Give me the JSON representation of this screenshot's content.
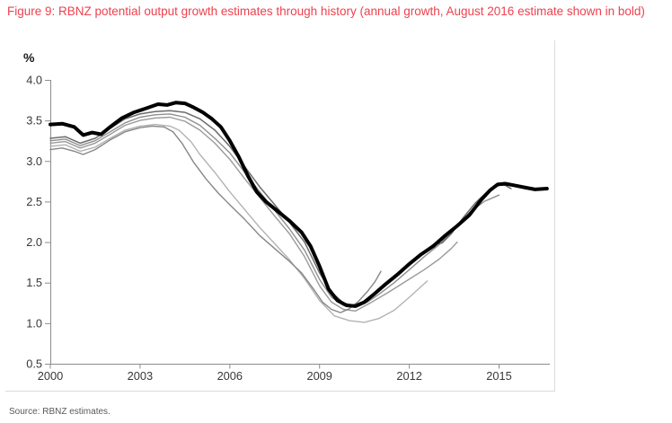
{
  "figure": {
    "title": "Figure 9: RBNZ potential output growth estimates through history (annual growth, August 2016 estimate shown in bold)",
    "source": "Source: RBNZ estimates.",
    "title_color": "#ee414d"
  },
  "chart_data": {
    "type": "line",
    "title": "RBNZ potential output growth estimates through history (annual growth)",
    "unit_label": "%",
    "xlabel": "",
    "ylabel": "%",
    "x_range": [
      2000,
      2016.7
    ],
    "y_range": [
      0.5,
      4.0
    ],
    "grid": false,
    "legend": "none",
    "x_ticks": [
      2000,
      2003,
      2006,
      2009,
      2012,
      2015
    ],
    "y_tick_labels": [
      "4.0",
      "3.5",
      "3.0",
      "2.5",
      "2.0",
      "1.5",
      "1.0",
      "0.5"
    ],
    "axis_color": "#8c8c8c",
    "tick_label_color": "#383838",
    "series": [
      {
        "name": "vintage-estimate-ending-2012",
        "color": "#b3b3b3",
        "width": 1.4,
        "points": [
          [
            2000,
            3.18
          ],
          [
            2000.5,
            3.2
          ],
          [
            2001,
            3.12
          ],
          [
            2001.5,
            3.17
          ],
          [
            2002,
            3.28
          ],
          [
            2002.5,
            3.38
          ],
          [
            2003,
            3.43
          ],
          [
            2003.5,
            3.45
          ],
          [
            2004,
            3.43
          ],
          [
            2004.3,
            3.38
          ],
          [
            2004.7,
            3.24
          ],
          [
            2005,
            3.08
          ],
          [
            2005.5,
            2.86
          ],
          [
            2006,
            2.62
          ],
          [
            2006.5,
            2.4
          ],
          [
            2007,
            2.18
          ],
          [
            2007.5,
            1.98
          ],
          [
            2008,
            1.78
          ],
          [
            2008.5,
            1.55
          ],
          [
            2009,
            1.28
          ],
          [
            2009.5,
            1.09
          ],
          [
            2010,
            1.03
          ],
          [
            2010.5,
            1.01
          ],
          [
            2011,
            1.06
          ],
          [
            2011.5,
            1.16
          ],
          [
            2012,
            1.32
          ],
          [
            2012.3,
            1.42
          ],
          [
            2012.6,
            1.52
          ]
        ]
      },
      {
        "name": "vintage-estimate-ending-2013",
        "color": "#9a9a9a",
        "width": 1.4,
        "points": [
          [
            2000,
            3.22
          ],
          [
            2000.5,
            3.24
          ],
          [
            2001,
            3.16
          ],
          [
            2001.5,
            3.22
          ],
          [
            2002,
            3.33
          ],
          [
            2002.5,
            3.44
          ],
          [
            2003,
            3.5
          ],
          [
            2003.5,
            3.53
          ],
          [
            2004,
            3.54
          ],
          [
            2004.5,
            3.49
          ],
          [
            2005,
            3.38
          ],
          [
            2005.5,
            3.22
          ],
          [
            2006,
            3.02
          ],
          [
            2006.5,
            2.78
          ],
          [
            2007,
            2.55
          ],
          [
            2007.5,
            2.32
          ],
          [
            2008,
            2.1
          ],
          [
            2008.5,
            1.82
          ],
          [
            2009,
            1.46
          ],
          [
            2009.4,
            1.26
          ],
          [
            2009.8,
            1.17
          ],
          [
            2010.2,
            1.15
          ],
          [
            2010.7,
            1.25
          ],
          [
            2011.3,
            1.38
          ],
          [
            2011.9,
            1.52
          ],
          [
            2012.5,
            1.66
          ],
          [
            2013,
            1.79
          ],
          [
            2013.4,
            1.92
          ],
          [
            2013.6,
            2.0
          ]
        ]
      },
      {
        "name": "vintage-estimate-ending-2015",
        "color": "#8f8f8f",
        "width": 1.4,
        "points": [
          [
            2000,
            3.25
          ],
          [
            2000.5,
            3.27
          ],
          [
            2001,
            3.19
          ],
          [
            2001.5,
            3.25
          ],
          [
            2002,
            3.36
          ],
          [
            2002.5,
            3.47
          ],
          [
            2003,
            3.54
          ],
          [
            2003.5,
            3.57
          ],
          [
            2004,
            3.58
          ],
          [
            2004.5,
            3.54
          ],
          [
            2005,
            3.44
          ],
          [
            2005.5,
            3.28
          ],
          [
            2006,
            3.1
          ],
          [
            2006.5,
            2.86
          ],
          [
            2007,
            2.62
          ],
          [
            2007.5,
            2.39
          ],
          [
            2008,
            2.16
          ],
          [
            2008.5,
            1.9
          ],
          [
            2009,
            1.54
          ],
          [
            2009.4,
            1.32
          ],
          [
            2009.8,
            1.22
          ],
          [
            2010.2,
            1.2
          ],
          [
            2010.6,
            1.26
          ],
          [
            2011,
            1.36
          ],
          [
            2011.5,
            1.5
          ],
          [
            2012,
            1.66
          ],
          [
            2012.5,
            1.82
          ],
          [
            2013,
            1.97
          ],
          [
            2013.5,
            2.16
          ],
          [
            2014,
            2.36
          ],
          [
            2014.5,
            2.5
          ],
          [
            2015,
            2.58
          ]
        ]
      },
      {
        "name": "vintage-estimate-ending-2011",
        "color": "#878787",
        "width": 1.4,
        "points": [
          [
            2000,
            3.14
          ],
          [
            2000.4,
            3.16
          ],
          [
            2000.8,
            3.12
          ],
          [
            2001.1,
            3.08
          ],
          [
            2001.5,
            3.14
          ],
          [
            2002,
            3.26
          ],
          [
            2002.5,
            3.36
          ],
          [
            2003,
            3.41
          ],
          [
            2003.4,
            3.43
          ],
          [
            2003.8,
            3.42
          ],
          [
            2004.1,
            3.36
          ],
          [
            2004.4,
            3.22
          ],
          [
            2004.8,
            2.98
          ],
          [
            2005.2,
            2.78
          ],
          [
            2005.6,
            2.61
          ],
          [
            2006,
            2.46
          ],
          [
            2006.5,
            2.28
          ],
          [
            2007,
            2.08
          ],
          [
            2007.5,
            1.92
          ],
          [
            2008,
            1.76
          ],
          [
            2008.4,
            1.62
          ],
          [
            2008.8,
            1.42
          ],
          [
            2009.1,
            1.26
          ],
          [
            2009.4,
            1.17
          ],
          [
            2009.7,
            1.13
          ],
          [
            2010,
            1.18
          ],
          [
            2010.3,
            1.27
          ],
          [
            2010.6,
            1.39
          ],
          [
            2010.85,
            1.51
          ],
          [
            2011.05,
            1.64
          ]
        ]
      },
      {
        "name": "vintage-estimate-ending-2016",
        "color": "#6b6b6b",
        "width": 1.5,
        "points": [
          [
            2000,
            3.28
          ],
          [
            2000.5,
            3.3
          ],
          [
            2001,
            3.22
          ],
          [
            2001.5,
            3.28
          ],
          [
            2002,
            3.4
          ],
          [
            2002.5,
            3.52
          ],
          [
            2003,
            3.58
          ],
          [
            2003.5,
            3.61
          ],
          [
            2004,
            3.62
          ],
          [
            2004.5,
            3.6
          ],
          [
            2005,
            3.52
          ],
          [
            2005.5,
            3.38
          ],
          [
            2006,
            3.18
          ],
          [
            2006.5,
            2.93
          ],
          [
            2007,
            2.68
          ],
          [
            2007.5,
            2.46
          ],
          [
            2008,
            2.24
          ],
          [
            2008.5,
            2.0
          ],
          [
            2009,
            1.62
          ],
          [
            2009.4,
            1.38
          ],
          [
            2009.8,
            1.25
          ],
          [
            2010.1,
            1.22
          ],
          [
            2010.5,
            1.27
          ],
          [
            2011,
            1.4
          ],
          [
            2011.5,
            1.55
          ],
          [
            2012,
            1.72
          ],
          [
            2012.4,
            1.86
          ],
          [
            2012.8,
            1.97
          ],
          [
            2013.1,
            1.99
          ],
          [
            2013.4,
            2.1
          ],
          [
            2013.8,
            2.3
          ],
          [
            2014.2,
            2.48
          ],
          [
            2014.6,
            2.62
          ],
          [
            2015,
            2.7
          ],
          [
            2015.2,
            2.7
          ],
          [
            2015.4,
            2.66
          ]
        ]
      },
      {
        "name": "august-2016-estimate-bold",
        "color": "#000000",
        "width": 4,
        "points": [
          [
            2000,
            3.45
          ],
          [
            2000.4,
            3.46
          ],
          [
            2000.8,
            3.42
          ],
          [
            2001.1,
            3.32
          ],
          [
            2001.4,
            3.35
          ],
          [
            2001.7,
            3.33
          ],
          [
            2002,
            3.42
          ],
          [
            2002.4,
            3.53
          ],
          [
            2002.8,
            3.6
          ],
          [
            2003.2,
            3.65
          ],
          [
            2003.6,
            3.7
          ],
          [
            2003.9,
            3.69
          ],
          [
            2004.2,
            3.72
          ],
          [
            2004.5,
            3.71
          ],
          [
            2004.8,
            3.66
          ],
          [
            2005.1,
            3.6
          ],
          [
            2005.4,
            3.52
          ],
          [
            2005.7,
            3.42
          ],
          [
            2006,
            3.25
          ],
          [
            2006.3,
            3.05
          ],
          [
            2006.6,
            2.82
          ],
          [
            2006.9,
            2.62
          ],
          [
            2007.2,
            2.5
          ],
          [
            2007.6,
            2.38
          ],
          [
            2008,
            2.26
          ],
          [
            2008.4,
            2.12
          ],
          [
            2008.7,
            1.95
          ],
          [
            2009,
            1.7
          ],
          [
            2009.3,
            1.42
          ],
          [
            2009.6,
            1.28
          ],
          [
            2009.9,
            1.22
          ],
          [
            2010.2,
            1.21
          ],
          [
            2010.5,
            1.26
          ],
          [
            2010.8,
            1.35
          ],
          [
            2011.2,
            1.48
          ],
          [
            2011.6,
            1.6
          ],
          [
            2012,
            1.73
          ],
          [
            2012.4,
            1.85
          ],
          [
            2012.8,
            1.95
          ],
          [
            2013.2,
            2.08
          ],
          [
            2013.6,
            2.2
          ],
          [
            2014,
            2.33
          ],
          [
            2014.4,
            2.52
          ],
          [
            2014.7,
            2.64
          ],
          [
            2014.95,
            2.71
          ],
          [
            2015.2,
            2.72
          ],
          [
            2015.5,
            2.7
          ],
          [
            2015.9,
            2.67
          ],
          [
            2016.2,
            2.65
          ],
          [
            2016.6,
            2.66
          ]
        ]
      }
    ]
  }
}
